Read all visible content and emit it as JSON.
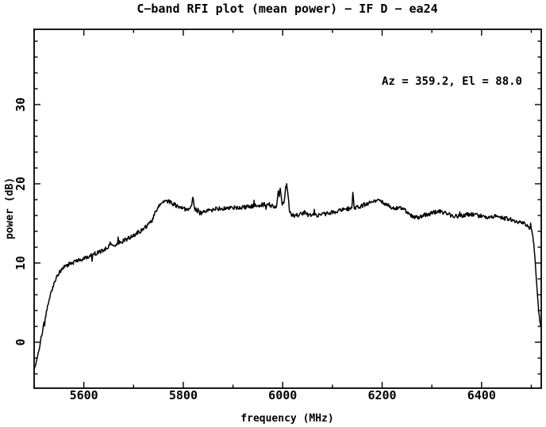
{
  "colors": {
    "background": "#ffffff",
    "foreground": "#000000"
  },
  "chart_data": {
    "type": "line",
    "title": "C−band RFI plot (mean power) − IF D − ea24",
    "xlabel": "frequency (MHz)",
    "ylabel": "power (dB)",
    "annotation": "Az = 359.2, El = 88.0",
    "xlim": [
      5500,
      6520
    ],
    "ylim": [
      -5.8,
      39.5
    ],
    "x_major_ticks": [
      5600,
      5800,
      6000,
      6200,
      6400
    ],
    "x_minor_step": 100,
    "y_major_ticks": [
      0,
      10,
      20,
      30
    ],
    "y_minor_step": 2,
    "grid": false,
    "legend": "none",
    "line_color": "#000000",
    "noise_amplitude_db": 0.27,
    "series": [
      {
        "name": "mean power",
        "points": [
          [
            5500,
            -3.6
          ],
          [
            5504,
            -2.6
          ],
          [
            5509,
            -1.2
          ],
          [
            5514,
            0.6
          ],
          [
            5520,
            2.4
          ],
          [
            5527,
            4.4
          ],
          [
            5534,
            6.2
          ],
          [
            5541,
            7.6
          ],
          [
            5549,
            8.7
          ],
          [
            5558,
            9.4
          ],
          [
            5568,
            9.8
          ],
          [
            5580,
            10.1
          ],
          [
            5592,
            10.4
          ],
          [
            5605,
            10.7
          ],
          [
            5620,
            11.1
          ],
          [
            5635,
            11.5
          ],
          [
            5648,
            12.0
          ],
          [
            5654,
            12.5
          ],
          [
            5661,
            12.3
          ],
          [
            5676,
            12.7
          ],
          [
            5692,
            13.2
          ],
          [
            5708,
            13.8
          ],
          [
            5722,
            14.4
          ],
          [
            5735,
            15.2
          ],
          [
            5744,
            16.4
          ],
          [
            5753,
            17.4
          ],
          [
            5763,
            17.9
          ],
          [
            5774,
            17.7
          ],
          [
            5785,
            17.3
          ],
          [
            5797,
            16.9
          ],
          [
            5808,
            16.7
          ],
          [
            5816,
            17.0
          ],
          [
            5819,
            18.4
          ],
          [
            5823,
            16.9
          ],
          [
            5833,
            16.3
          ],
          [
            5846,
            16.5
          ],
          [
            5861,
            16.8
          ],
          [
            5878,
            16.9
          ],
          [
            5895,
            16.9
          ],
          [
            5912,
            17.0
          ],
          [
            5929,
            17.1
          ],
          [
            5947,
            17.2
          ],
          [
            5963,
            17.4
          ],
          [
            5972,
            17.4
          ],
          [
            5981,
            17.1
          ],
          [
            5988,
            17.1
          ],
          [
            5991,
            19.2
          ],
          [
            5993,
            18.5
          ],
          [
            5995,
            19.4
          ],
          [
            5999,
            17.3
          ],
          [
            6003,
            17.8
          ],
          [
            6006,
            19.6
          ],
          [
            6008,
            20.0
          ],
          [
            6011,
            18.2
          ],
          [
            6014,
            16.6
          ],
          [
            6019,
            16.0
          ],
          [
            6032,
            16.0
          ],
          [
            6045,
            16.4
          ],
          [
            6052,
            16.0
          ],
          [
            6068,
            16.0
          ],
          [
            6085,
            16.2
          ],
          [
            6102,
            16.4
          ],
          [
            6119,
            16.7
          ],
          [
            6133,
            16.9
          ],
          [
            6139,
            17.0
          ],
          [
            6141,
            18.7
          ],
          [
            6144,
            17.0
          ],
          [
            6152,
            17.1
          ],
          [
            6166,
            17.4
          ],
          [
            6180,
            17.7
          ],
          [
            6192,
            17.9
          ],
          [
            6203,
            17.6
          ],
          [
            6214,
            17.2
          ],
          [
            6224,
            16.9
          ],
          [
            6236,
            17.0
          ],
          [
            6247,
            16.6
          ],
          [
            6260,
            15.9
          ],
          [
            6274,
            15.8
          ],
          [
            6288,
            16.1
          ],
          [
            6303,
            16.4
          ],
          [
            6317,
            16.5
          ],
          [
            6331,
            16.2
          ],
          [
            6346,
            15.9
          ],
          [
            6362,
            16.0
          ],
          [
            6377,
            16.2
          ],
          [
            6392,
            16.0
          ],
          [
            6407,
            15.8
          ],
          [
            6423,
            15.9
          ],
          [
            6439,
            15.7
          ],
          [
            6455,
            15.6
          ],
          [
            6470,
            15.3
          ],
          [
            6484,
            15.0
          ],
          [
            6495,
            14.6
          ],
          [
            6501,
            14.2
          ],
          [
            6505,
            12.5
          ],
          [
            6508,
            10.0
          ],
          [
            6511,
            7.2
          ],
          [
            6514,
            4.6
          ],
          [
            6517,
            2.6
          ],
          [
            6519,
            2.0
          ]
        ]
      }
    ]
  }
}
